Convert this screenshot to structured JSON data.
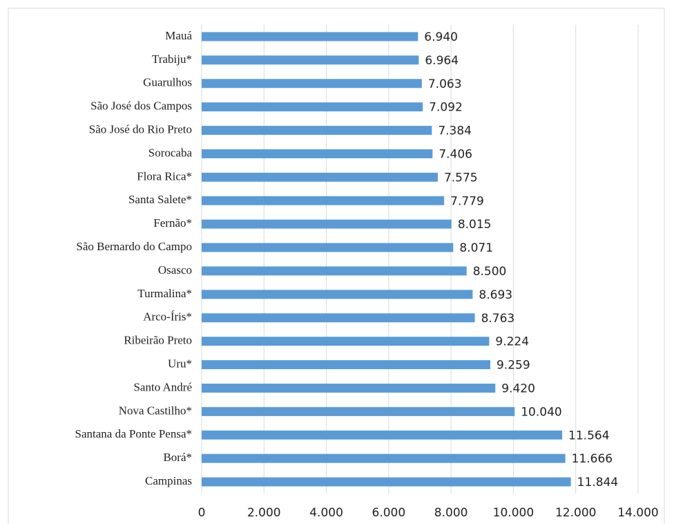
{
  "chart_data": {
    "type": "bar",
    "orientation": "horizontal",
    "categories": [
      "Mauá",
      "Trabiju*",
      "Guarulhos",
      "São José dos Campos",
      "São José do Rio Preto",
      "Sorocaba",
      "Flora Rica*",
      "Santa Salete*",
      "Fernão*",
      "São Bernardo do Campo",
      "Osasco",
      "Turmalina*",
      "Arco-Íris*",
      "Ribeirão Preto",
      "Uru*",
      "Santo André",
      "Nova Castilho*",
      "Santana da Ponte Pensa*",
      "Borá*",
      "Campinas"
    ],
    "values": [
      6940,
      6964,
      7063,
      7092,
      7384,
      7406,
      7575,
      7779,
      8015,
      8071,
      8500,
      8693,
      8763,
      9224,
      9259,
      9420,
      10040,
      11564,
      11666,
      11844
    ],
    "value_labels": [
      "6.940",
      "6.964",
      "7.063",
      "7.092",
      "7.384",
      "7.406",
      "7.575",
      "7.779",
      "8.015",
      "8.071",
      "8.500",
      "8.693",
      "8.763",
      "9.224",
      "9.259",
      "9.420",
      "10.040",
      "11.564",
      "11.666",
      "11.844"
    ],
    "color": "#5b9bd5",
    "xlim": [
      0,
      14000
    ],
    "xticks": [
      0,
      {
        "value": 2000,
        "label": "2.000"
      },
      {
        "value": 4000,
        "label": "4.000"
      },
      {
        "value": 6000,
        "label": "6.000"
      },
      {
        "value": 8000,
        "label": "8.000"
      },
      {
        "value": 10000,
        "label": "10.000"
      },
      {
        "value": 12000,
        "label": "12.000"
      },
      {
        "value": 14000,
        "label": "14.000"
      }
    ],
    "grid": true
  }
}
